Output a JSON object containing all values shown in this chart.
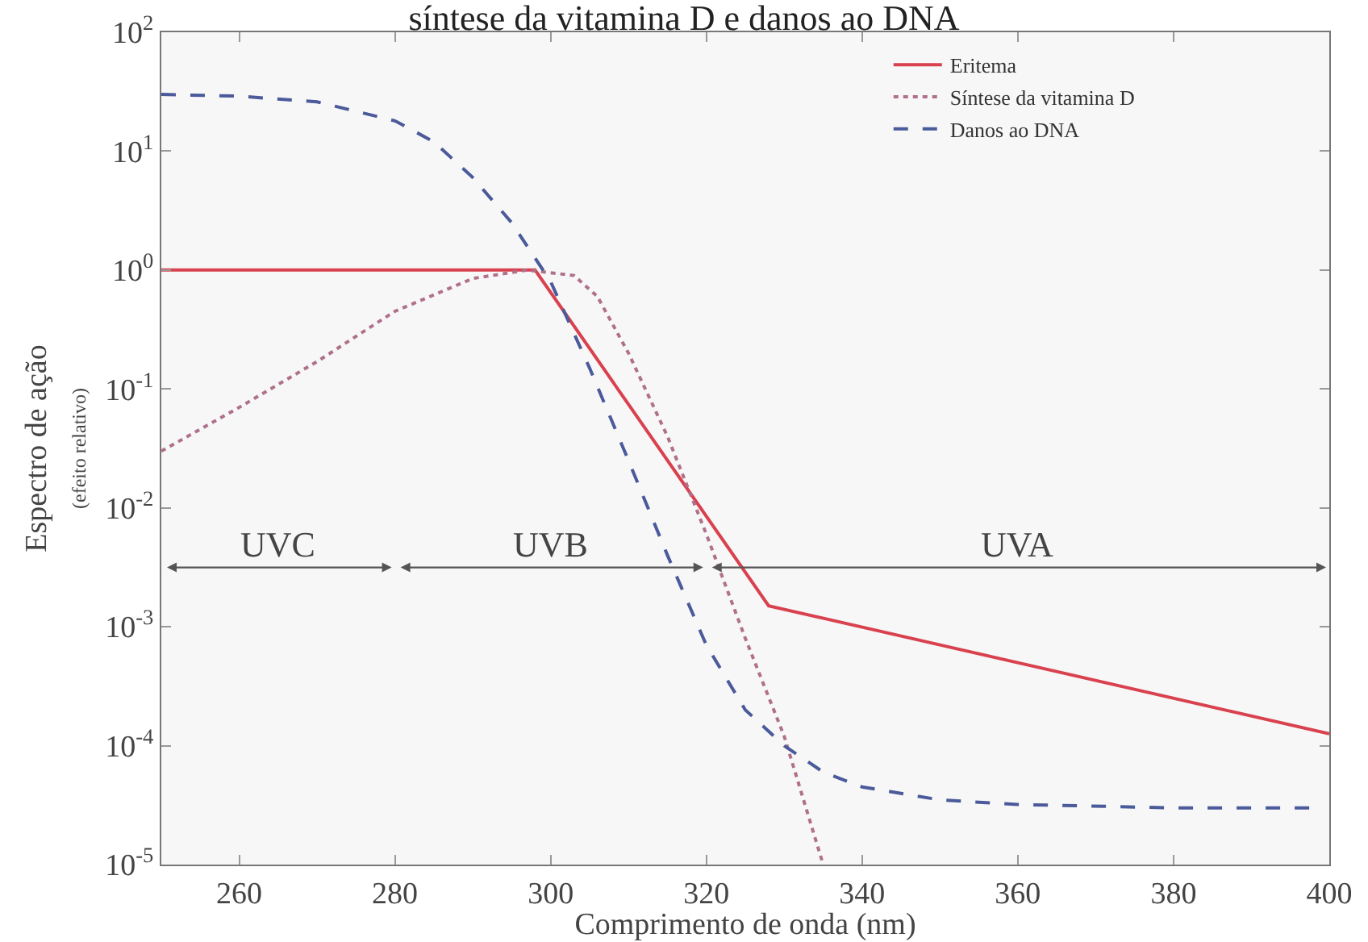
{
  "chart_data": {
    "type": "line",
    "title": "síntese da vitamina D e danos ao DNA",
    "xlabel": "Comprimento de onda (nm)",
    "ylabel": "Espectro de ação\n(efeito relativo)",
    "log": "y",
    "grid": false,
    "legend": "top right",
    "marker": "none",
    "xlim": [
      250,
      400
    ],
    "xticks": [
      260,
      280,
      300,
      320,
      340,
      360,
      380,
      400
    ],
    "ylim": [
      1e-05,
      100
    ],
    "yticks": [
      {
        "value": 100,
        "label": "10$^{2}$"
      },
      {
        "value": 10,
        "label": "10$^{1}$"
      },
      {
        "value": 1,
        "label": "10$^{0}$"
      },
      {
        "value": 0.1,
        "label": "10$^{-1}$"
      },
      {
        "value": 0.01,
        "label": "10$^{-2}$"
      },
      {
        "value": 0.001,
        "label": "10$^{-3}$"
      },
      {
        "value": 0.0001,
        "label": "10$^{-4}$"
      },
      {
        "value": 1e-05,
        "label": "10$^{-5}$"
      }
    ],
    "bands": [
      {
        "axis": "x",
        "from": 250,
        "to": 280,
        "label": "UVC"
      },
      {
        "axis": "x",
        "from": 280,
        "to": 320,
        "label": "UVB"
      },
      {
        "axis": "x",
        "from": 320,
        "to": 400,
        "label": "UVA"
      }
    ],
    "series": [
      {
        "name": "Eritema",
        "color": "#d9414e",
        "line_style": "solid",
        "x": [
          250,
          298,
          328,
          400
        ],
        "values": [
          1,
          1,
          0.0015,
          0.000126
        ]
      },
      {
        "name": "Síntese da vitamina D",
        "color": "#b0708c",
        "line_style": "dotted",
        "x": [
          250,
          260,
          270,
          280,
          290,
          297,
          303,
          306,
          310,
          315,
          320,
          325,
          330,
          335
        ],
        "values": [
          0.03,
          0.07,
          0.17,
          0.45,
          0.85,
          1,
          0.9,
          0.6,
          0.2,
          0.04,
          0.006,
          0.0008,
          0.00012,
          1e-05
        ]
      },
      {
        "name": "Danos ao DNA",
        "color": "#4a5a9a",
        "line_style": "dashed",
        "x": [
          250,
          260,
          270,
          280,
          285,
          290,
          295,
          300,
          305,
          310,
          315,
          320,
          325,
          330,
          335,
          340,
          350,
          360,
          380,
          398
        ],
        "values": [
          30,
          29,
          26,
          18,
          12,
          6,
          2.5,
          0.8,
          0.15,
          0.025,
          0.004,
          0.0007,
          0.0002,
          0.0001,
          6e-05,
          4.5e-05,
          3.5e-05,
          3.2e-05,
          3e-05,
          3e-05
        ]
      }
    ]
  }
}
